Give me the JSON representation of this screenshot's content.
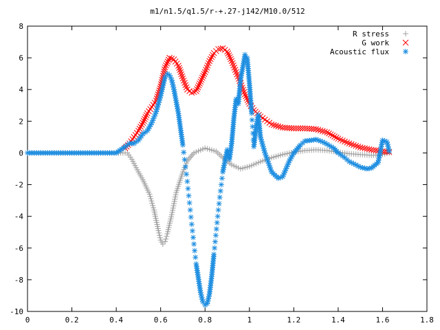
{
  "chart_data": {
    "type": "scatter",
    "title": "m1/n1.5/q1.5/r-+.27-j142/M10.0/512",
    "xlabel": "",
    "ylabel": "",
    "xlim": [
      0,
      1.8
    ],
    "ylim": [
      -10,
      8
    ],
    "x_ticks": [
      "0",
      "0.2",
      "0.4",
      "0.6",
      "0.8",
      "1",
      "1.2",
      "1.4",
      "1.6",
      "1.8"
    ],
    "y_ticks": [
      "8",
      "6",
      "4",
      "2",
      "0",
      "-2",
      "-4",
      "-6",
      "-8",
      "-10"
    ],
    "grid": false,
    "legend_position": "top-right",
    "series": [
      {
        "name": "R stress",
        "marker": "plus",
        "color": "#a0a0a0",
        "x": [
          0,
          0.05,
          0.1,
          0.15,
          0.2,
          0.25,
          0.3,
          0.35,
          0.4,
          0.44,
          0.45,
          0.47,
          0.5,
          0.52,
          0.55,
          0.57,
          0.59,
          0.6,
          0.61,
          0.62,
          0.63,
          0.65,
          0.67,
          0.7,
          0.72,
          0.75,
          0.8,
          0.85,
          0.88,
          0.92,
          0.96,
          1,
          1.05,
          1.1,
          1.15,
          1.2,
          1.25,
          1.3,
          1.35,
          1.4,
          1.45,
          1.5,
          1.55,
          1.6,
          1.63
        ],
        "y": [
          0,
          0,
          0,
          0,
          0,
          0,
          0,
          0,
          0,
          0,
          0,
          -0.4,
          -1.2,
          -1.7,
          -2.6,
          -3.6,
          -4.9,
          -5.5,
          -5.75,
          -5.6,
          -5.1,
          -3.9,
          -2.5,
          -1.2,
          -0.5,
          0,
          0.3,
          0.1,
          -0.3,
          -0.75,
          -1.0,
          -0.85,
          -0.55,
          -0.3,
          -0.1,
          0.05,
          0.15,
          0.2,
          0.15,
          0.05,
          -0.05,
          -0.1,
          -0.15,
          -0.1,
          0
        ]
      },
      {
        "name": "G work",
        "marker": "cross",
        "color": "#ff0000",
        "x": [
          0.44,
          0.46,
          0.48,
          0.5,
          0.52,
          0.54,
          0.56,
          0.58,
          0.6,
          0.62,
          0.64,
          0.66,
          0.68,
          0.7,
          0.72,
          0.74,
          0.76,
          0.78,
          0.8,
          0.82,
          0.84,
          0.86,
          0.88,
          0.9,
          0.92,
          0.94,
          0.96,
          0.98,
          1,
          1.02,
          1.05,
          1.08,
          1.1,
          1.15,
          1.2,
          1.25,
          1.3,
          1.35,
          1.4,
          1.45,
          1.5,
          1.55,
          1.6,
          1.63
        ],
        "y": [
          0.3,
          0.6,
          1.0,
          1.4,
          1.9,
          2.5,
          2.9,
          3.3,
          4.2,
          5.4,
          6.0,
          5.9,
          5.5,
          4.7,
          4.0,
          3.8,
          3.9,
          4.5,
          5.1,
          5.8,
          6.3,
          6.55,
          6.6,
          6.4,
          5.8,
          5.1,
          4.4,
          3.7,
          3.1,
          2.7,
          2.3,
          2.0,
          1.8,
          1.6,
          1.55,
          1.55,
          1.5,
          1.3,
          0.9,
          0.6,
          0.35,
          0.2,
          0.1,
          0.05
        ]
      },
      {
        "name": "Acoustic flux",
        "marker": "star",
        "color": "#1a8ce0",
        "x": [
          0,
          0.05,
          0.1,
          0.15,
          0.2,
          0.25,
          0.3,
          0.35,
          0.4,
          0.44,
          0.46,
          0.48,
          0.5,
          0.52,
          0.54,
          0.56,
          0.58,
          0.6,
          0.62,
          0.63,
          0.64,
          0.65,
          0.66,
          0.68,
          0.7,
          0.72,
          0.74,
          0.76,
          0.78,
          0.79,
          0.8,
          0.81,
          0.82,
          0.83,
          0.84,
          0.86,
          0.88,
          0.9,
          0.91,
          0.92,
          0.93,
          0.94,
          0.95,
          0.96,
          0.97,
          0.98,
          0.99,
          1,
          1.01,
          1.02,
          1.03,
          1.04,
          1.05,
          1.07,
          1.1,
          1.13,
          1.15,
          1.18,
          1.2,
          1.23,
          1.25,
          1.28,
          1.3,
          1.33,
          1.35,
          1.38,
          1.4,
          1.43,
          1.45,
          1.48,
          1.5,
          1.53,
          1.55,
          1.58,
          1.6,
          1.62,
          1.63
        ],
        "y": [
          0,
          0,
          0,
          0,
          0,
          0,
          0,
          0,
          0,
          0.4,
          0.6,
          0.6,
          0.8,
          1.2,
          1.4,
          1.9,
          2.6,
          3.6,
          4.8,
          5.0,
          4.9,
          4.6,
          4.0,
          2.5,
          0.5,
          -1.8,
          -4.5,
          -7.0,
          -8.8,
          -9.4,
          -9.6,
          -9.5,
          -8.9,
          -7.8,
          -6.4,
          -3.6,
          -1.2,
          0.2,
          -0.4,
          0.6,
          2.2,
          3.4,
          3.1,
          4.6,
          5.4,
          6.2,
          6.0,
          4.4,
          2.5,
          0.4,
          1.6,
          2.4,
          1.0,
          0.0,
          -1.2,
          -1.6,
          -1.5,
          -0.5,
          0.0,
          0.5,
          0.75,
          0.8,
          0.85,
          0.7,
          0.55,
          0.3,
          0.0,
          -0.3,
          -0.55,
          -0.75,
          -0.9,
          -1.0,
          -0.95,
          -0.6,
          0.8,
          0.7,
          0.1
        ]
      }
    ]
  }
}
